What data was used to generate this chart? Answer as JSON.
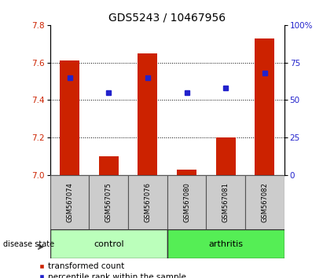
{
  "title": "GDS5243 / 10467956",
  "samples": [
    "GSM567074",
    "GSM567075",
    "GSM567076",
    "GSM567080",
    "GSM567081",
    "GSM567082"
  ],
  "transformed_count": [
    7.61,
    7.1,
    7.65,
    7.03,
    7.2,
    7.73
  ],
  "percentile_rank": [
    65,
    55,
    65,
    55,
    58,
    68
  ],
  "ylim_left": [
    7.0,
    7.8
  ],
  "ylim_right": [
    0,
    100
  ],
  "yticks_left": [
    7.0,
    7.2,
    7.4,
    7.6,
    7.8
  ],
  "yticks_right": [
    0,
    25,
    50,
    75,
    100
  ],
  "ytick_labels_right": [
    "0",
    "25",
    "50",
    "75",
    "100%"
  ],
  "bar_color": "#cc2200",
  "dot_color": "#2222cc",
  "bar_width": 0.5,
  "control_bg": "#bbffbb",
  "arthritis_bg": "#55ee55",
  "label_bg": "#cccccc",
  "title_fontsize": 10,
  "tick_fontsize": 7.5,
  "legend_fontsize": 7.5
}
